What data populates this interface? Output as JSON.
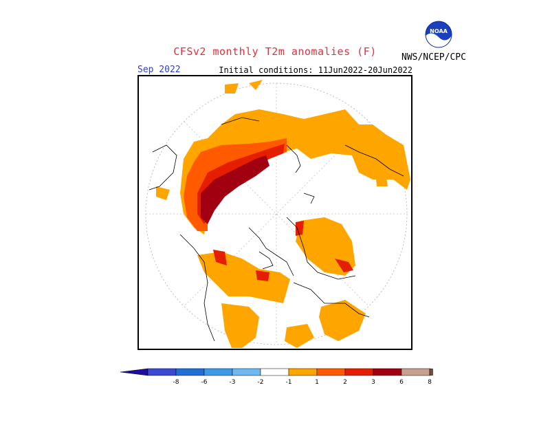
{
  "header": {
    "title": "CFSv2 monthly T2m anomalies (F)",
    "target_month": "Sep 2022",
    "initial_conditions": "Initial conditions: 11Jun2022-20Jun2022",
    "agency": "NWS/NCEP/CPC",
    "logo_text": "NOAA"
  },
  "colorbar": {
    "labels": [
      "-8",
      "-6",
      "-3",
      "-2",
      "-1",
      "1",
      "2",
      "3",
      "6",
      "8"
    ],
    "colors": [
      "#1a0fa0",
      "#3a4bd0",
      "#1f6fd4",
      "#3d9ae8",
      "#6fb8f0",
      "#ffffff",
      "#ffa500",
      "#ff5a00",
      "#e61e00",
      "#a0000f",
      "#c8a090",
      "#7a4a3a"
    ]
  },
  "map": {
    "projection": "north-polar-stereographic",
    "anomaly_colors": {
      "1": "#ffa500",
      "2": "#ff5a00",
      "3": "#e61e00",
      "6": "#a0000f"
    }
  }
}
